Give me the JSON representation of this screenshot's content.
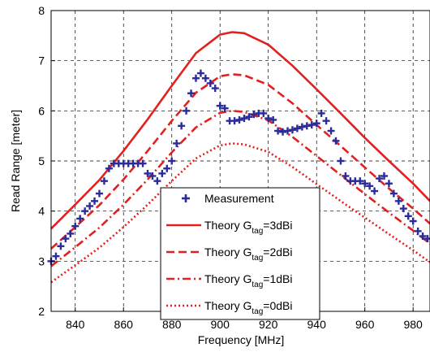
{
  "chart_data": {
    "type": "line",
    "xlabel": "Frequency [MHz]",
    "ylabel": "Read Range [meter]",
    "xlim": [
      830,
      987
    ],
    "ylim": [
      2,
      8
    ],
    "xticks": [
      "840",
      "860",
      "880",
      "900",
      "920",
      "940",
      "960",
      "980"
    ],
    "yticks": [
      "2",
      "3",
      "4",
      "5",
      "6",
      "7",
      "8"
    ],
    "grid": true,
    "legend_position": "lower-center",
    "series": [
      {
        "name": "Measurement",
        "legend_prefix": "Measurement",
        "legend_sub": "",
        "legend_suffix": "",
        "style": "markers",
        "color": "#2b2b9a",
        "x": [
          830,
          832,
          834,
          836,
          838,
          840,
          842,
          844,
          846,
          848,
          850,
          852,
          854,
          856,
          858,
          860,
          862,
          864,
          866,
          868,
          870,
          872,
          874,
          876,
          878,
          880,
          882,
          884,
          886,
          888,
          890,
          892,
          894,
          896,
          898,
          900,
          902,
          904,
          906,
          908,
          910,
          912,
          914,
          916,
          918,
          920,
          922,
          924,
          926,
          928,
          930,
          932,
          934,
          936,
          938,
          940,
          942,
          944,
          946,
          948,
          950,
          952,
          954,
          956,
          958,
          960,
          962,
          964,
          966,
          968,
          970,
          972,
          974,
          976,
          978,
          980,
          982,
          984,
          986
        ],
        "y": [
          3.0,
          3.1,
          3.3,
          3.45,
          3.55,
          3.7,
          3.85,
          4.0,
          4.1,
          4.2,
          4.35,
          4.6,
          4.85,
          4.95,
          4.95,
          4.95,
          4.95,
          4.95,
          4.95,
          4.95,
          4.75,
          4.7,
          4.6,
          4.75,
          4.85,
          5.0,
          5.35,
          5.7,
          6.0,
          6.35,
          6.65,
          6.75,
          6.65,
          6.55,
          6.45,
          6.1,
          6.05,
          5.8,
          5.8,
          5.82,
          5.85,
          5.88,
          5.93,
          5.95,
          5.95,
          5.85,
          5.82,
          5.6,
          5.58,
          5.6,
          5.62,
          5.65,
          5.68,
          5.7,
          5.72,
          5.75,
          5.95,
          5.8,
          5.6,
          5.4,
          5.0,
          4.7,
          4.6,
          4.6,
          4.6,
          4.55,
          4.5,
          4.4,
          4.65,
          4.7,
          4.55,
          4.35,
          4.2,
          4.05,
          3.9,
          3.8,
          3.6,
          3.5,
          3.45
        ]
      },
      {
        "name": "Theory Gtag=3dBi",
        "legend_prefix": "Theory G",
        "legend_sub": "tag",
        "legend_suffix": "=3dBi",
        "style": "solid",
        "color": "#e32020",
        "x": [
          830,
          840,
          850,
          860,
          870,
          880,
          890,
          900,
          905,
          910,
          920,
          930,
          940,
          950,
          960,
          970,
          980,
          987
        ],
        "y": [
          3.65,
          4.13,
          4.62,
          5.2,
          5.83,
          6.5,
          7.15,
          7.52,
          7.57,
          7.55,
          7.32,
          6.9,
          6.43,
          5.95,
          5.46,
          5.0,
          4.55,
          4.2
        ]
      },
      {
        "name": "Theory Gtag=2dBi",
        "legend_prefix": "Theory G",
        "legend_sub": "tag",
        "legend_suffix": "=2dBi",
        "style": "dashed",
        "color": "#e32020",
        "x": [
          830,
          840,
          850,
          860,
          870,
          880,
          890,
          900,
          905,
          910,
          920,
          930,
          940,
          950,
          960,
          970,
          980,
          987
        ],
        "y": [
          3.25,
          3.68,
          4.12,
          4.63,
          5.2,
          5.8,
          6.36,
          6.69,
          6.73,
          6.71,
          6.52,
          6.15,
          5.72,
          5.3,
          4.87,
          4.45,
          4.05,
          3.75
        ]
      },
      {
        "name": "Theory Gtag=1dBi",
        "legend_prefix": "Theory G",
        "legend_sub": "tag",
        "legend_suffix": "=1dBi",
        "style": "dashdot",
        "color": "#e32020",
        "x": [
          830,
          840,
          850,
          860,
          870,
          880,
          890,
          900,
          905,
          910,
          920,
          930,
          940,
          950,
          960,
          970,
          980,
          987
        ],
        "y": [
          2.9,
          3.28,
          3.67,
          4.13,
          4.63,
          5.17,
          5.67,
          5.96,
          6.0,
          5.98,
          5.81,
          5.48,
          5.1,
          4.72,
          4.34,
          3.97,
          3.61,
          3.35
        ]
      },
      {
        "name": "Theory Gtag=0dBi",
        "legend_prefix": "Theory G",
        "legend_sub": "tag",
        "legend_suffix": "=0dBi",
        "style": "dotted",
        "color": "#e32020",
        "x": [
          830,
          840,
          850,
          860,
          870,
          880,
          890,
          900,
          905,
          910,
          920,
          930,
          940,
          950,
          960,
          970,
          980,
          987
        ],
        "y": [
          2.58,
          2.92,
          3.27,
          3.68,
          4.13,
          4.6,
          5.05,
          5.31,
          5.35,
          5.33,
          5.18,
          4.88,
          4.54,
          4.2,
          3.87,
          3.54,
          3.22,
          2.98
        ]
      }
    ]
  }
}
